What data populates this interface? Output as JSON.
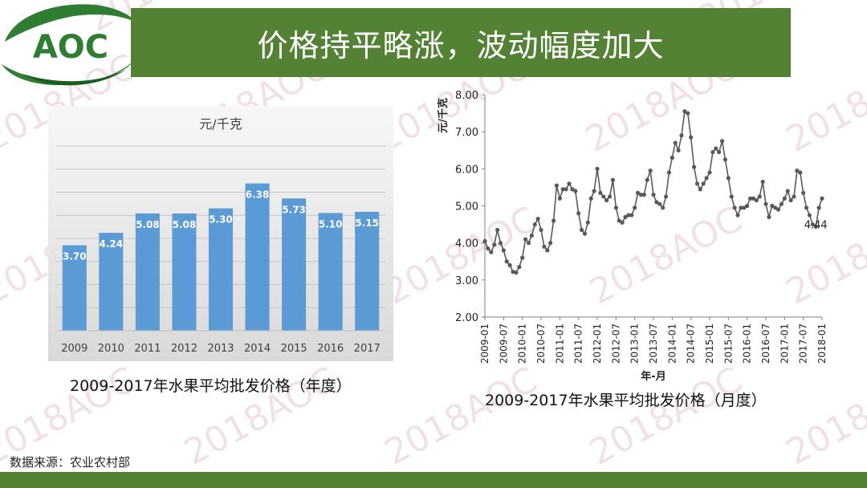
{
  "header": {
    "title": "价格持平略涨，波动幅度加大",
    "logo_text": "AOC",
    "title_bar_color": "#548235"
  },
  "watermark": {
    "text": "2018AOC",
    "color": "#e8c8d4"
  },
  "captions": {
    "left": "2009-2017年水果平均批发价格（年度）",
    "right": "2009-2017年水果平均批发价格（月度）"
  },
  "source": "数据来源：农业农村部",
  "footer_bar_color": "#548235",
  "chart_data": [
    {
      "type": "bar",
      "title": "元/千克",
      "categories": [
        "2009",
        "2010",
        "2011",
        "2012",
        "2013",
        "2014",
        "2015",
        "2016",
        "2017"
      ],
      "values": [
        3.7,
        4.24,
        5.08,
        5.08,
        5.3,
        6.38,
        5.73,
        5.1,
        5.15
      ],
      "data_labels": [
        "3.70",
        "4.24",
        "5.08",
        "5.08",
        "5.30",
        "6.38",
        "5.73",
        "5.10",
        "5.15"
      ],
      "ylim": [
        0,
        8
      ],
      "grid": true,
      "bar_color": "#5b9bd5"
    },
    {
      "type": "line",
      "ylabel": "元/千克",
      "xlabel": "年-月",
      "ylim": [
        2.0,
        8.0
      ],
      "yticks": [
        "2.00",
        "3.00",
        "4.00",
        "5.00",
        "6.00",
        "7.00",
        "8.00"
      ],
      "xticks": [
        "2009-01",
        "2009-07",
        "2010-01",
        "2010-07",
        "2011-01",
        "2011-07",
        "2012-01",
        "2012-07",
        "2013-01",
        "2013-07",
        "2014-01",
        "2014-07",
        "2015-01",
        "2015-07",
        "2016-01",
        "2016-07",
        "2017-01",
        "2017-07",
        "2018-01"
      ],
      "annotation": "4.44",
      "line_color": "#595959",
      "start": "2009-01",
      "values": [
        4.05,
        3.85,
        3.75,
        3.95,
        4.35,
        4.0,
        3.8,
        3.5,
        3.4,
        3.22,
        3.2,
        3.35,
        3.6,
        4.1,
        4.0,
        4.2,
        4.5,
        4.65,
        4.35,
        3.9,
        3.8,
        4.0,
        4.6,
        5.55,
        5.2,
        5.45,
        5.45,
        5.6,
        5.45,
        5.4,
        4.8,
        4.35,
        4.25,
        4.55,
        5.2,
        5.4,
        6.0,
        5.35,
        5.25,
        5.15,
        5.25,
        5.7,
        4.95,
        4.6,
        4.55,
        4.7,
        4.75,
        4.75,
        4.95,
        5.35,
        5.3,
        5.3,
        5.7,
        5.95,
        5.3,
        5.1,
        5.05,
        4.95,
        5.25,
        5.9,
        6.3,
        6.7,
        6.5,
        6.9,
        7.55,
        7.5,
        6.85,
        6.05,
        5.6,
        5.45,
        5.6,
        5.75,
        5.9,
        6.45,
        6.55,
        6.45,
        6.75,
        6.25,
        5.75,
        5.25,
        4.95,
        4.75,
        4.95,
        4.95,
        5.0,
        5.2,
        5.2,
        5.15,
        5.25,
        5.65,
        5.05,
        4.7,
        5.0,
        4.95,
        4.9,
        5.05,
        5.2,
        5.4,
        5.15,
        5.25,
        5.95,
        5.9,
        5.35,
        4.95,
        4.75,
        4.5,
        4.44,
        4.95,
        5.2
      ]
    }
  ]
}
